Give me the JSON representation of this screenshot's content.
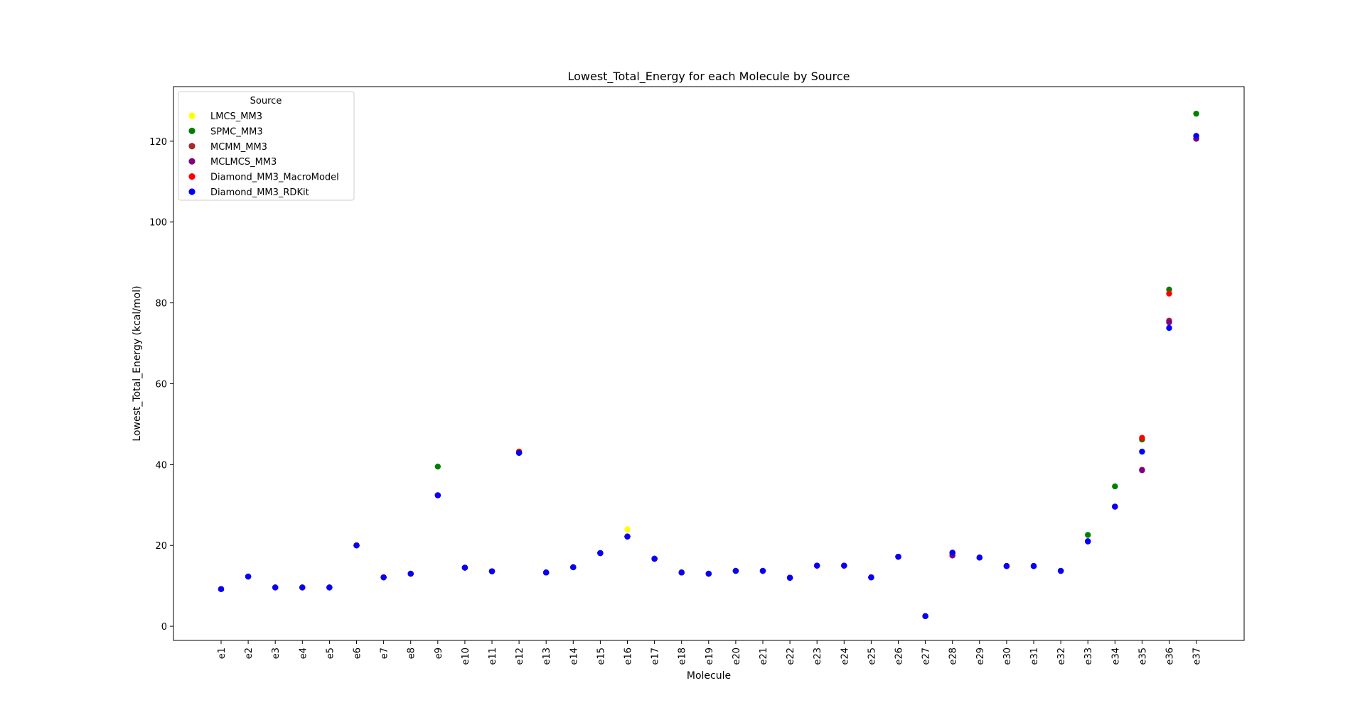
{
  "chart_data": {
    "type": "scatter",
    "title": "Lowest_Total_Energy for each Molecule by Source",
    "xlabel": "Molecule",
    "ylabel": "Lowest_Total_Energy (kcal/mol)",
    "ylim": [
      -3.5,
      133.5
    ],
    "yticks": [
      0,
      20,
      40,
      60,
      80,
      100,
      120
    ],
    "grid": false,
    "legend": {
      "title": "Source",
      "placement": "top-left"
    },
    "categories": [
      "e1",
      "e2",
      "e3",
      "e4",
      "e5",
      "e6",
      "e7",
      "e8",
      "e9",
      "e10",
      "e11",
      "e12",
      "e13",
      "e14",
      "e15",
      "e16",
      "e17",
      "e18",
      "e19",
      "e20",
      "e21",
      "e22",
      "e23",
      "e24",
      "e25",
      "e26",
      "e27",
      "e28",
      "e29",
      "e30",
      "e31",
      "e32",
      "e33",
      "e34",
      "e35",
      "e36",
      "e37"
    ],
    "series": [
      {
        "name": "LMCS_MM3",
        "color": "#ffff00",
        "values": [
          9.2,
          12.3,
          9.6,
          9.6,
          9.6,
          20.0,
          12.1,
          13.0,
          32.4,
          14.5,
          13.6,
          43.3,
          13.3,
          14.6,
          18.1,
          24.0,
          16.7,
          13.3,
          13.0,
          13.7,
          13.7,
          12.0,
          15.0,
          15.0,
          12.1,
          17.2,
          2.5,
          17.6,
          17.0,
          14.9,
          14.9,
          13.7,
          21.0,
          29.6,
          46.5,
          75.5,
          120.6
        ]
      },
      {
        "name": "SPMC_MM3",
        "color": "#008000",
        "values": [
          9.2,
          12.3,
          9.6,
          9.6,
          9.6,
          20.0,
          12.1,
          13.0,
          39.5,
          14.5,
          13.6,
          42.9,
          13.3,
          14.6,
          18.1,
          22.2,
          16.7,
          13.3,
          13.0,
          13.7,
          13.7,
          12.0,
          15.0,
          15.0,
          12.1,
          17.2,
          2.5,
          18.2,
          17.0,
          14.9,
          14.9,
          13.7,
          22.6,
          34.6,
          46.2,
          83.3,
          126.8
        ]
      },
      {
        "name": "MCMM_MM3",
        "color": "#a52a2a",
        "values": [
          9.2,
          12.3,
          9.6,
          9.6,
          9.6,
          20.0,
          12.1,
          13.0,
          32.4,
          14.5,
          13.6,
          42.9,
          13.3,
          14.6,
          18.1,
          22.2,
          16.7,
          13.3,
          13.0,
          13.7,
          13.7,
          12.0,
          15.0,
          15.0,
          12.1,
          17.2,
          2.5,
          17.6,
          17.0,
          14.9,
          14.9,
          13.7,
          21.0,
          29.6,
          38.7,
          75.6,
          120.6
        ]
      },
      {
        "name": "MCLMCS_MM3",
        "color": "#800080",
        "values": [
          9.2,
          12.3,
          9.6,
          9.6,
          9.6,
          20.0,
          12.1,
          13.0,
          32.4,
          14.5,
          13.6,
          42.9,
          13.3,
          14.6,
          18.1,
          22.2,
          16.7,
          13.3,
          13.0,
          13.7,
          13.7,
          12.0,
          15.0,
          15.0,
          12.1,
          17.2,
          2.5,
          17.5,
          17.0,
          14.9,
          14.9,
          13.7,
          21.0,
          29.6,
          38.6,
          75.2,
          120.6
        ]
      },
      {
        "name": "Diamond_MM3_MacroModel",
        "color": "#ff0000",
        "values": [
          9.2,
          12.3,
          9.6,
          9.6,
          9.6,
          20.0,
          12.1,
          13.0,
          32.4,
          14.5,
          13.6,
          43.2,
          13.3,
          14.6,
          18.1,
          22.2,
          16.7,
          13.3,
          13.0,
          13.7,
          13.7,
          12.0,
          15.0,
          15.0,
          12.1,
          17.2,
          2.5,
          18.2,
          17.0,
          14.9,
          14.9,
          13.7,
          21.0,
          29.6,
          46.6,
          82.3,
          121.3
        ]
      },
      {
        "name": "Diamond_MM3_RDKit",
        "color": "#0000ff",
        "values": [
          9.2,
          12.3,
          9.6,
          9.6,
          9.6,
          20.0,
          12.1,
          13.0,
          32.4,
          14.5,
          13.6,
          42.9,
          13.3,
          14.6,
          18.1,
          22.2,
          16.7,
          13.3,
          13.0,
          13.7,
          13.7,
          12.0,
          15.0,
          15.0,
          12.1,
          17.2,
          2.5,
          18.2,
          17.0,
          14.9,
          14.9,
          13.7,
          21.0,
          29.6,
          43.2,
          73.8,
          121.3
        ]
      }
    ]
  }
}
